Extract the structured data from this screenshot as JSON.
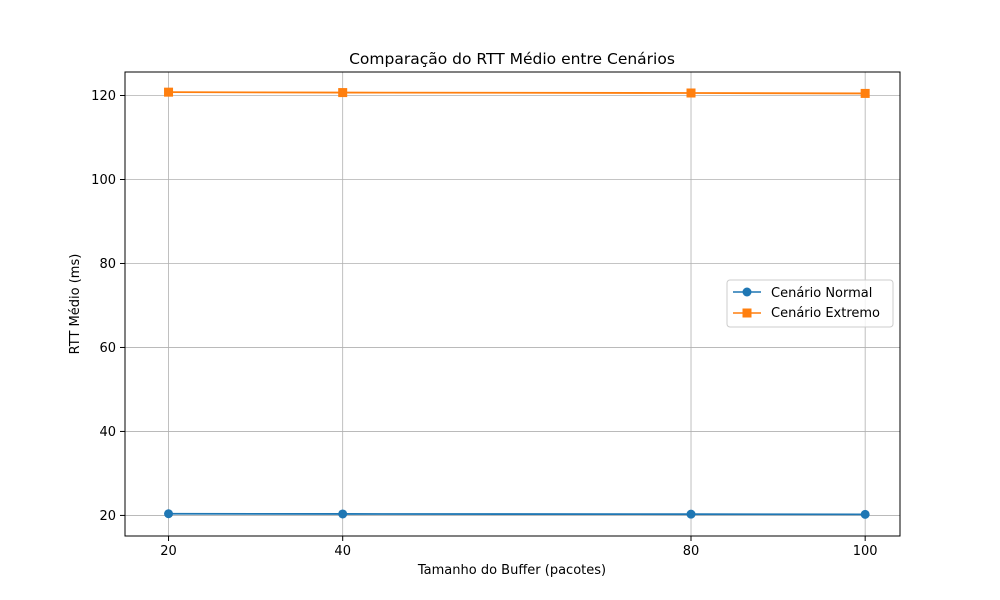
{
  "chart_data": {
    "type": "line",
    "title": "Comparação do RTT Médio entre Cenários",
    "xlabel": "Tamanho do Buffer (pacotes)",
    "ylabel": "RTT Médio (ms)",
    "x": [
      20,
      40,
      80,
      100
    ],
    "xticks": [
      "20",
      "40",
      "80",
      "100"
    ],
    "yticks": [
      "20",
      "40",
      "60",
      "80",
      "100",
      "120"
    ],
    "xlim": [
      15,
      104
    ],
    "ylim": [
      15.1,
      125.6
    ],
    "grid": true,
    "legend_position": "center-right",
    "series": [
      {
        "name": "Cenário Normal",
        "values": [
          20.4,
          20.35,
          20.3,
          20.25
        ],
        "color": "#1f77b4",
        "marker": "circle"
      },
      {
        "name": "Cenário Extremo",
        "values": [
          120.8,
          120.7,
          120.6,
          120.5
        ],
        "color": "#ff7f0e",
        "marker": "square"
      }
    ]
  }
}
